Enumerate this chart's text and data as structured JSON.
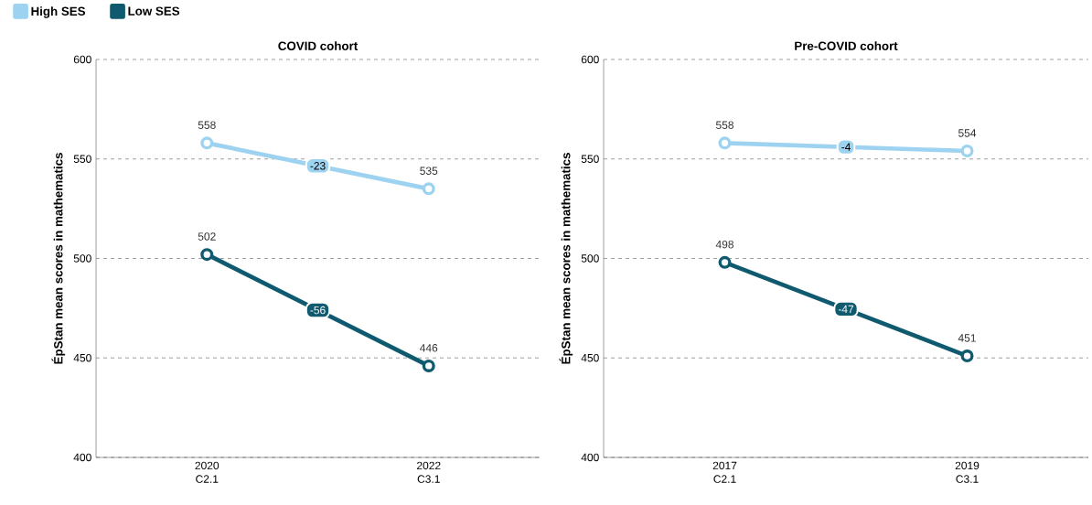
{
  "chart_data": [
    {
      "type": "line",
      "title": "COVID cohort",
      "ylabel": "ÉpStan mean scores in mathematics",
      "categories": [
        "2020 C2.1",
        "2022 C3.1"
      ],
      "series": [
        {
          "name": "High SES",
          "color": "#9dd3f0",
          "values": [
            558,
            535
          ]
        },
        {
          "name": "Low SES",
          "color": "#0f5a6e",
          "values": [
            502,
            446
          ]
        }
      ],
      "ylim": [
        400,
        600
      ],
      "yticks": [
        400,
        450,
        500,
        550,
        600
      ],
      "grid": "y",
      "legend": "top left",
      "marker": "circle",
      "line_style": "solid",
      "data_labels": true,
      "annotations": [
        {
          "text": "-23",
          "y": 546.5
        },
        {
          "text": "-56",
          "y": 474
        }
      ]
    },
    {
      "type": "line",
      "title": "Pre-COVID cohort",
      "ylabel": "ÉpStan mean scores in mathematics",
      "categories": [
        "2017 C2.1",
        "2019 C3.1"
      ],
      "series": [
        {
          "color": "#9dd3f0",
          "values": [
            558,
            554
          ]
        },
        {
          "color": "#0f5a6e",
          "values": [
            498,
            451
          ]
        }
      ],
      "ylim": [
        400,
        600
      ],
      "yticks": [
        400,
        450,
        500,
        550,
        600
      ],
      "grid": "y",
      "marker": "circle",
      "line_style": "solid",
      "data_labels": true,
      "annotations": [
        {
          "text": "-4",
          "y": 556
        },
        {
          "text": "-47",
          "y": 474.5
        }
      ]
    }
  ]
}
